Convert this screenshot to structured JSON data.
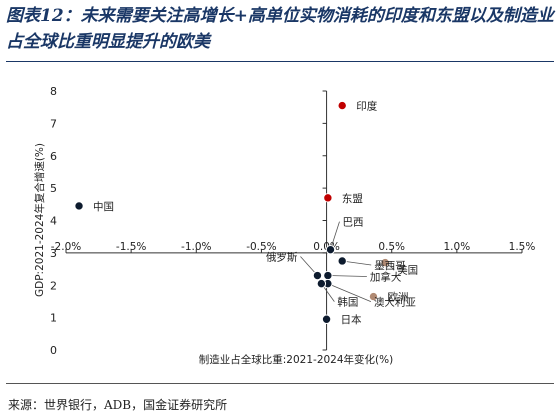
{
  "title": "图表12：未来需要关注高增长+高单位实物消耗的印度和东盟以及制造业占全球比重明显提升的欧美",
  "source": "来源：世界银行，ADB，国金证券研究所",
  "colors": {
    "title": "#1a3766",
    "dark_point": "#0d1b2e",
    "red_point": "#c00000",
    "tan_point": "#b08a73"
  },
  "chart_data": {
    "type": "scatter",
    "xlabel": "制造业占全球比重:2021-2024年变化(%)",
    "ylabel": "GDP:2021-2024年复合增速(%)",
    "xlim": [
      -2.0,
      1.5
    ],
    "ylim": [
      0,
      8
    ],
    "x_ticks": [
      -2.0,
      -1.5,
      -1.0,
      -0.5,
      0.0,
      0.5,
      1.0,
      1.5
    ],
    "x_tick_labels": [
      "-2.0%",
      "-1.5%",
      "-1.0%",
      "-0.5%",
      "0.0%",
      "0.5%",
      "1.0%",
      "1.5%"
    ],
    "y_ticks": [
      0,
      1,
      2,
      3,
      4,
      5,
      6,
      7,
      8
    ],
    "y_tick_labels": [
      "0",
      "1",
      "2",
      "3",
      "4",
      "5",
      "6",
      "7",
      "8"
    ],
    "x_axis_crosses_y": 3,
    "grid": false,
    "legend": "none",
    "points": [
      {
        "label": "中国",
        "x": -1.9,
        "y": 4.45,
        "color": "dark"
      },
      {
        "label": "印度",
        "x": 0.12,
        "y": 7.55,
        "color": "red"
      },
      {
        "label": "东盟",
        "x": 0.01,
        "y": 4.7,
        "color": "red"
      },
      {
        "label": "巴西",
        "x": 0.03,
        "y": 3.1,
        "color": "dark"
      },
      {
        "label": "墨西哥",
        "x": 0.12,
        "y": 2.75,
        "color": "dark"
      },
      {
        "label": "美国",
        "x": 0.45,
        "y": 2.7,
        "color": "tan"
      },
      {
        "label": "欧洲",
        "x": 0.36,
        "y": 1.65,
        "color": "tan"
      },
      {
        "label": "俄罗斯",
        "x": -0.07,
        "y": 2.3,
        "color": "dark"
      },
      {
        "label": "加拿大",
        "x": 0.01,
        "y": 2.3,
        "color": "dark"
      },
      {
        "label": "澳大利亚",
        "x": 0.01,
        "y": 2.05,
        "color": "dark"
      },
      {
        "label": "韩国",
        "x": -0.04,
        "y": 2.05,
        "color": "dark"
      },
      {
        "label": "日本",
        "x": 0.0,
        "y": 0.95,
        "color": "dark"
      }
    ]
  }
}
